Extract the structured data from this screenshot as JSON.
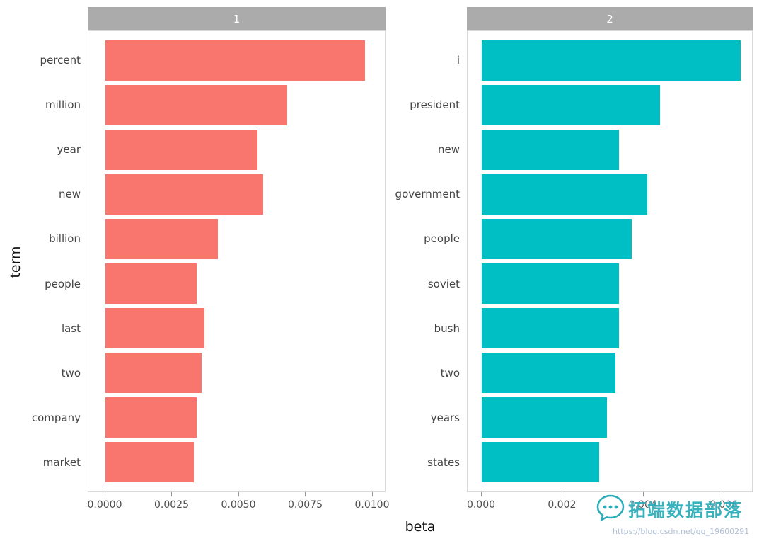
{
  "axes": {
    "x_label": "beta",
    "y_label": "term"
  },
  "watermark": {
    "brand": "拓端数据部落",
    "url": "https://blog.csdn.net/qq_19600291"
  },
  "colors": {
    "facet1_bar": "#F8766D",
    "facet2_bar": "#00BFC4",
    "strip_bg": "#ababab",
    "strip_text": "#ffffff"
  },
  "chart_data": [
    {
      "type": "bar",
      "orientation": "horizontal",
      "facet_label": "1",
      "bar_color": "#F8766D",
      "categories": [
        "percent",
        "million",
        "year",
        "new",
        "billion",
        "people",
        "last",
        "two",
        "company",
        "market"
      ],
      "values": [
        0.0097,
        0.0068,
        0.0057,
        0.0059,
        0.0042,
        0.0034,
        0.0037,
        0.0036,
        0.0034,
        0.0033
      ],
      "xlabel": "beta",
      "ylabel": "term",
      "xlim": [
        0,
        0.01045
      ],
      "xticks": [
        0,
        0.0025,
        0.005,
        0.0075,
        0.01
      ],
      "xtick_labels": [
        "0.0000",
        "0.0025",
        "0.0050",
        "0.0075",
        "0.0100"
      ],
      "grid": false,
      "legend": "none"
    },
    {
      "type": "bar",
      "orientation": "horizontal",
      "facet_label": "2",
      "bar_color": "#00BFC4",
      "categories": [
        "i",
        "president",
        "new",
        "government",
        "people",
        "soviet",
        "bush",
        "two",
        "years",
        "states"
      ],
      "values": [
        0.0064,
        0.0044,
        0.0034,
        0.0041,
        0.0037,
        0.0034,
        0.0034,
        0.0033,
        0.0031,
        0.0029
      ],
      "xlabel": "beta",
      "ylabel": "term",
      "xlim": [
        0,
        0.00668
      ],
      "xticks": [
        0,
        0.002,
        0.004,
        0.006
      ],
      "xtick_labels": [
        "0.000",
        "0.002",
        "0.004",
        "0.006"
      ],
      "grid": false,
      "legend": "none"
    }
  ]
}
